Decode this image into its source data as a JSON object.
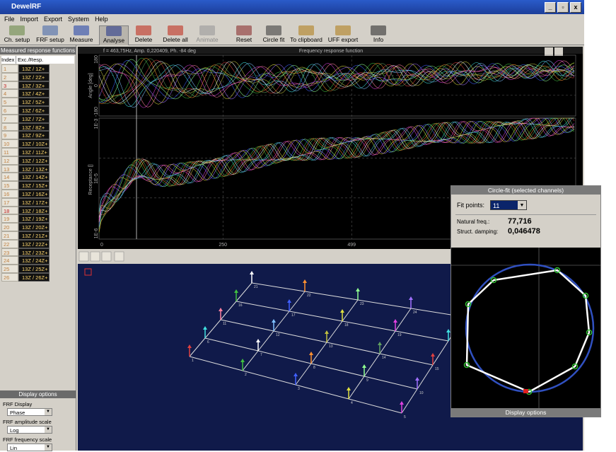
{
  "window": {
    "title": "DewelRF",
    "menu": [
      "File",
      "Import",
      "Export",
      "System",
      "Help"
    ]
  },
  "toolbar": [
    "Ch. setup",
    "FRF setup",
    "Measure",
    "Analyse",
    "Delete",
    "Delete all",
    "Animate",
    "Reset",
    "Circle fit",
    "To clipboard",
    "UFF export",
    "Info"
  ],
  "channels": {
    "title": "Measured response functions",
    "headers": [
      "Index",
      "Exc./Resp."
    ],
    "rows": [
      [
        "1",
        "13Z / 1Z+"
      ],
      [
        "2",
        "13Z / 2Z+"
      ],
      [
        "3",
        "13Z / 3Z+"
      ],
      [
        "4",
        "13Z / 4Z+"
      ],
      [
        "5",
        "13Z / 5Z+"
      ],
      [
        "6",
        "13Z / 6Z+"
      ],
      [
        "7",
        "13Z / 7Z+"
      ],
      [
        "8",
        "13Z / 8Z+"
      ],
      [
        "9",
        "13Z / 9Z+"
      ],
      [
        "10",
        "13Z / 10Z+"
      ],
      [
        "11",
        "13Z / 11Z+"
      ],
      [
        "12",
        "13Z / 12Z+"
      ],
      [
        "13",
        "13Z / 13Z+"
      ],
      [
        "14",
        "13Z / 14Z+"
      ],
      [
        "15",
        "13Z / 15Z+"
      ],
      [
        "16",
        "13Z / 16Z+"
      ],
      [
        "17",
        "13Z / 17Z+"
      ],
      [
        "18",
        "13Z / 18Z+"
      ],
      [
        "19",
        "13Z / 19Z+"
      ],
      [
        "20",
        "13Z / 20Z+"
      ],
      [
        "21",
        "13Z / 21Z+"
      ],
      [
        "22",
        "13Z / 22Z+"
      ],
      [
        "23",
        "13Z / 23Z+"
      ],
      [
        "24",
        "13Z / 24Z+"
      ],
      [
        "25",
        "13Z / 25Z+"
      ],
      [
        "26",
        "13Z / 26Z+"
      ]
    ]
  },
  "display_options": {
    "title": "Display options",
    "fields": [
      {
        "label": "FRF Display",
        "value": "Phase"
      },
      {
        "label": "FRF amplitude scale",
        "value": "Log"
      },
      {
        "label": "FRF frequency scale",
        "value": "Lin"
      }
    ]
  },
  "frf": {
    "title": "Frequency response function",
    "cursor": "f = 463,75Hz, Amp. 0,220409, Ph. -84 deg",
    "phase_axis": "Angle [deg]",
    "amp_axis": "Receptance []",
    "phase_ticks": [
      "180",
      "0",
      "-180"
    ],
    "amp_ticks": [
      "1E-3",
      "1E-5",
      "1E-6"
    ],
    "x_ticks": [
      "0",
      "250",
      "499"
    ]
  },
  "mesh_nodes": [
    "1",
    "2",
    "3",
    "4",
    "5",
    "6",
    "7",
    "8",
    "9",
    "10",
    "11",
    "12",
    "13",
    "14",
    "15",
    "16",
    "17",
    "18",
    "19",
    "20",
    "21",
    "22",
    "23",
    "24",
    "25"
  ],
  "circle_fit": {
    "title": "Circle-fit (selected channels)",
    "fit_points_label": "Fit points:",
    "fit_points": "11",
    "freq_label": "Natural freq.:",
    "freq": "77,716",
    "damping_label": "Struct. damping:",
    "damping": "0,046478",
    "footer": "Display options"
  }
}
